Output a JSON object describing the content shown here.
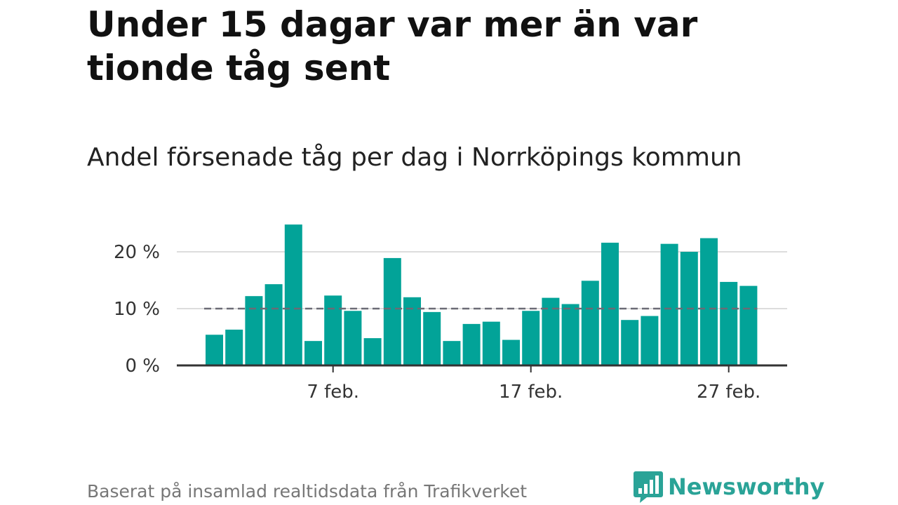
{
  "title": "Under 15 dagar var mer än var tionde tåg sent",
  "subtitle": "Andel försenade tåg per dag i Norrköpings kommun",
  "footer": "Baserat på insamlad realtidsdata från Trafikverket",
  "brand": {
    "name": "Newsworthy",
    "icon": "bar-chart-speech-bubble-icon"
  },
  "colors": {
    "bar": "#02a398",
    "grid": "#dddddd",
    "axis": "#333333",
    "reference": "#6b6b75",
    "brand": "#2aa397"
  },
  "chart_data": {
    "type": "bar",
    "title": "Andel försenade tåg per dag i Norrköpings kommun",
    "categories": [
      "1 feb.",
      "2 feb.",
      "3 feb.",
      "4 feb.",
      "5 feb.",
      "6 feb.",
      "7 feb.",
      "8 feb.",
      "9 feb.",
      "10 feb.",
      "11 feb.",
      "12 feb.",
      "13 feb.",
      "14 feb.",
      "15 feb.",
      "16 feb.",
      "17 feb.",
      "18 feb.",
      "19 feb.",
      "20 feb.",
      "21 feb.",
      "22 feb.",
      "23 feb.",
      "24 feb.",
      "25 feb.",
      "26 feb.",
      "27 feb.",
      "28 feb."
    ],
    "values": [
      5.4,
      6.3,
      12.2,
      14.3,
      24.8,
      4.3,
      12.3,
      9.6,
      4.8,
      18.9,
      12.0,
      9.4,
      4.3,
      7.3,
      7.7,
      4.5,
      9.6,
      11.9,
      10.8,
      14.9,
      21.6,
      8.0,
      8.7,
      21.4,
      20.0,
      22.4,
      14.7,
      14.0
    ],
    "reference_line": 10,
    "y_ticks": [
      0,
      10,
      20
    ],
    "y_tick_labels": [
      "0 %",
      "10 %",
      "20 %"
    ],
    "x_tick_labels": [
      {
        "label": "7 feb.",
        "category": "7 feb."
      },
      {
        "label": "17 feb.",
        "category": "17 feb."
      },
      {
        "label": "27 feb.",
        "category": "27 feb."
      }
    ],
    "ylim": [
      0,
      25
    ],
    "grid": true,
    "legend": false
  }
}
